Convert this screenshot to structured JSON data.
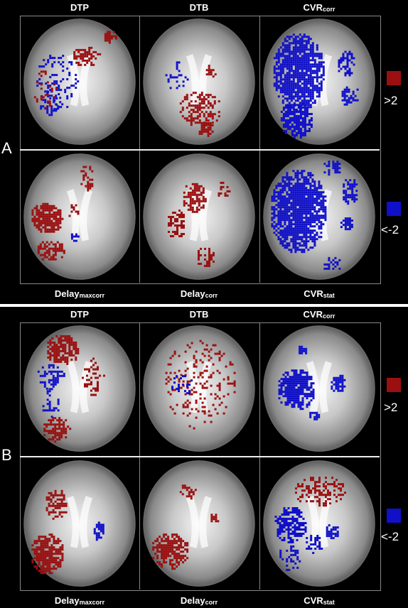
{
  "panels": [
    {
      "letter": "A",
      "top_labels": [
        {
          "main": "DTP",
          "sub": ""
        },
        {
          "main": "DTB",
          "sub": ""
        },
        {
          "main": "CVR",
          "sub": "corr"
        }
      ],
      "bottom_labels": [
        {
          "main": "Delay",
          "sub": "maxcorr"
        },
        {
          "main": "Delay",
          "sub": "corr"
        },
        {
          "main": "CVR",
          "sub": "stat"
        }
      ]
    },
    {
      "letter": "B",
      "top_labels": [
        {
          "main": "DTP",
          "sub": ""
        },
        {
          "main": "DTB",
          "sub": ""
        },
        {
          "main": "CVR",
          "sub": "corr"
        }
      ],
      "bottom_labels": [
        {
          "main": "Delay",
          "sub": "maxcorr"
        },
        {
          "main": "Delay",
          "sub": "corr"
        },
        {
          "main": "CVR",
          "sub": "stat"
        }
      ]
    }
  ],
  "legend": {
    "positive": {
      "label": ">2",
      "color": "#9a1010"
    },
    "negative": {
      "label": "<-2",
      "color": "#1010c8"
    }
  }
}
